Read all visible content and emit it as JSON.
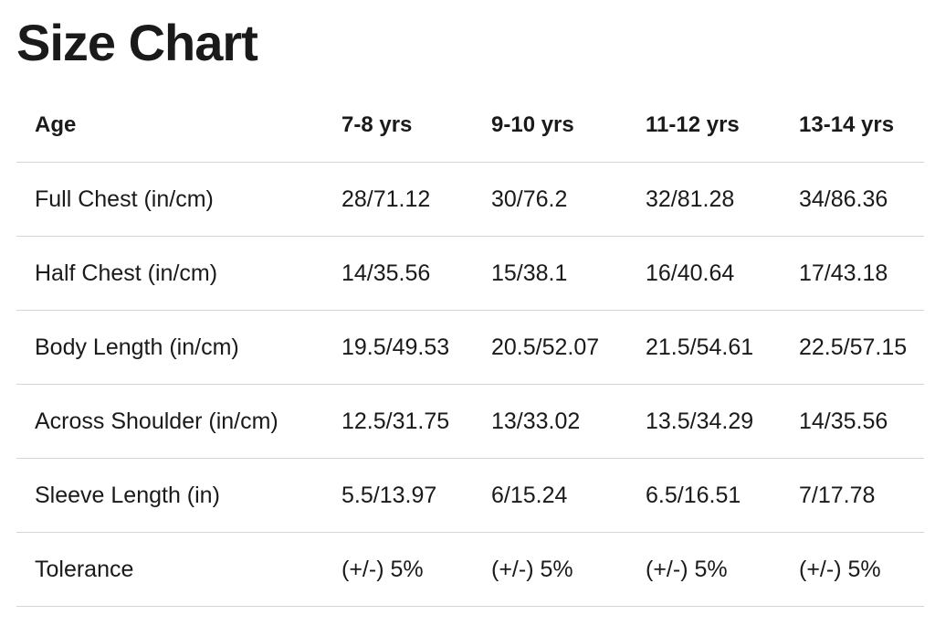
{
  "header": {
    "title": "Size Chart"
  },
  "table": {
    "columns": [
      "Age",
      "7-8 yrs",
      "9-10 yrs",
      "11-12 yrs",
      "13-14 yrs"
    ],
    "rows": [
      [
        "Full Chest (in/cm)",
        "28/71.12",
        "30/76.2",
        "32/81.28",
        "34/86.36"
      ],
      [
        "Half Chest (in/cm)",
        "14/35.56",
        "15/38.1",
        "16/40.64",
        "17/43.18"
      ],
      [
        "Body Length (in/cm)",
        "19.5/49.53",
        "20.5/52.07",
        "21.5/54.61",
        "22.5/57.15"
      ],
      [
        "Across Shoulder (in/cm)",
        "12.5/31.75",
        "13/33.02",
        "13.5/34.29",
        "14/35.56"
      ],
      [
        "Sleeve Length (in)",
        "5.5/13.97",
        "6/15.24",
        "6.5/16.51",
        "7/17.78"
      ],
      [
        "Tolerance",
        "(+/-) 5%",
        "(+/-) 5%",
        "(+/-) 5%",
        "(+/-) 5%"
      ]
    ]
  }
}
